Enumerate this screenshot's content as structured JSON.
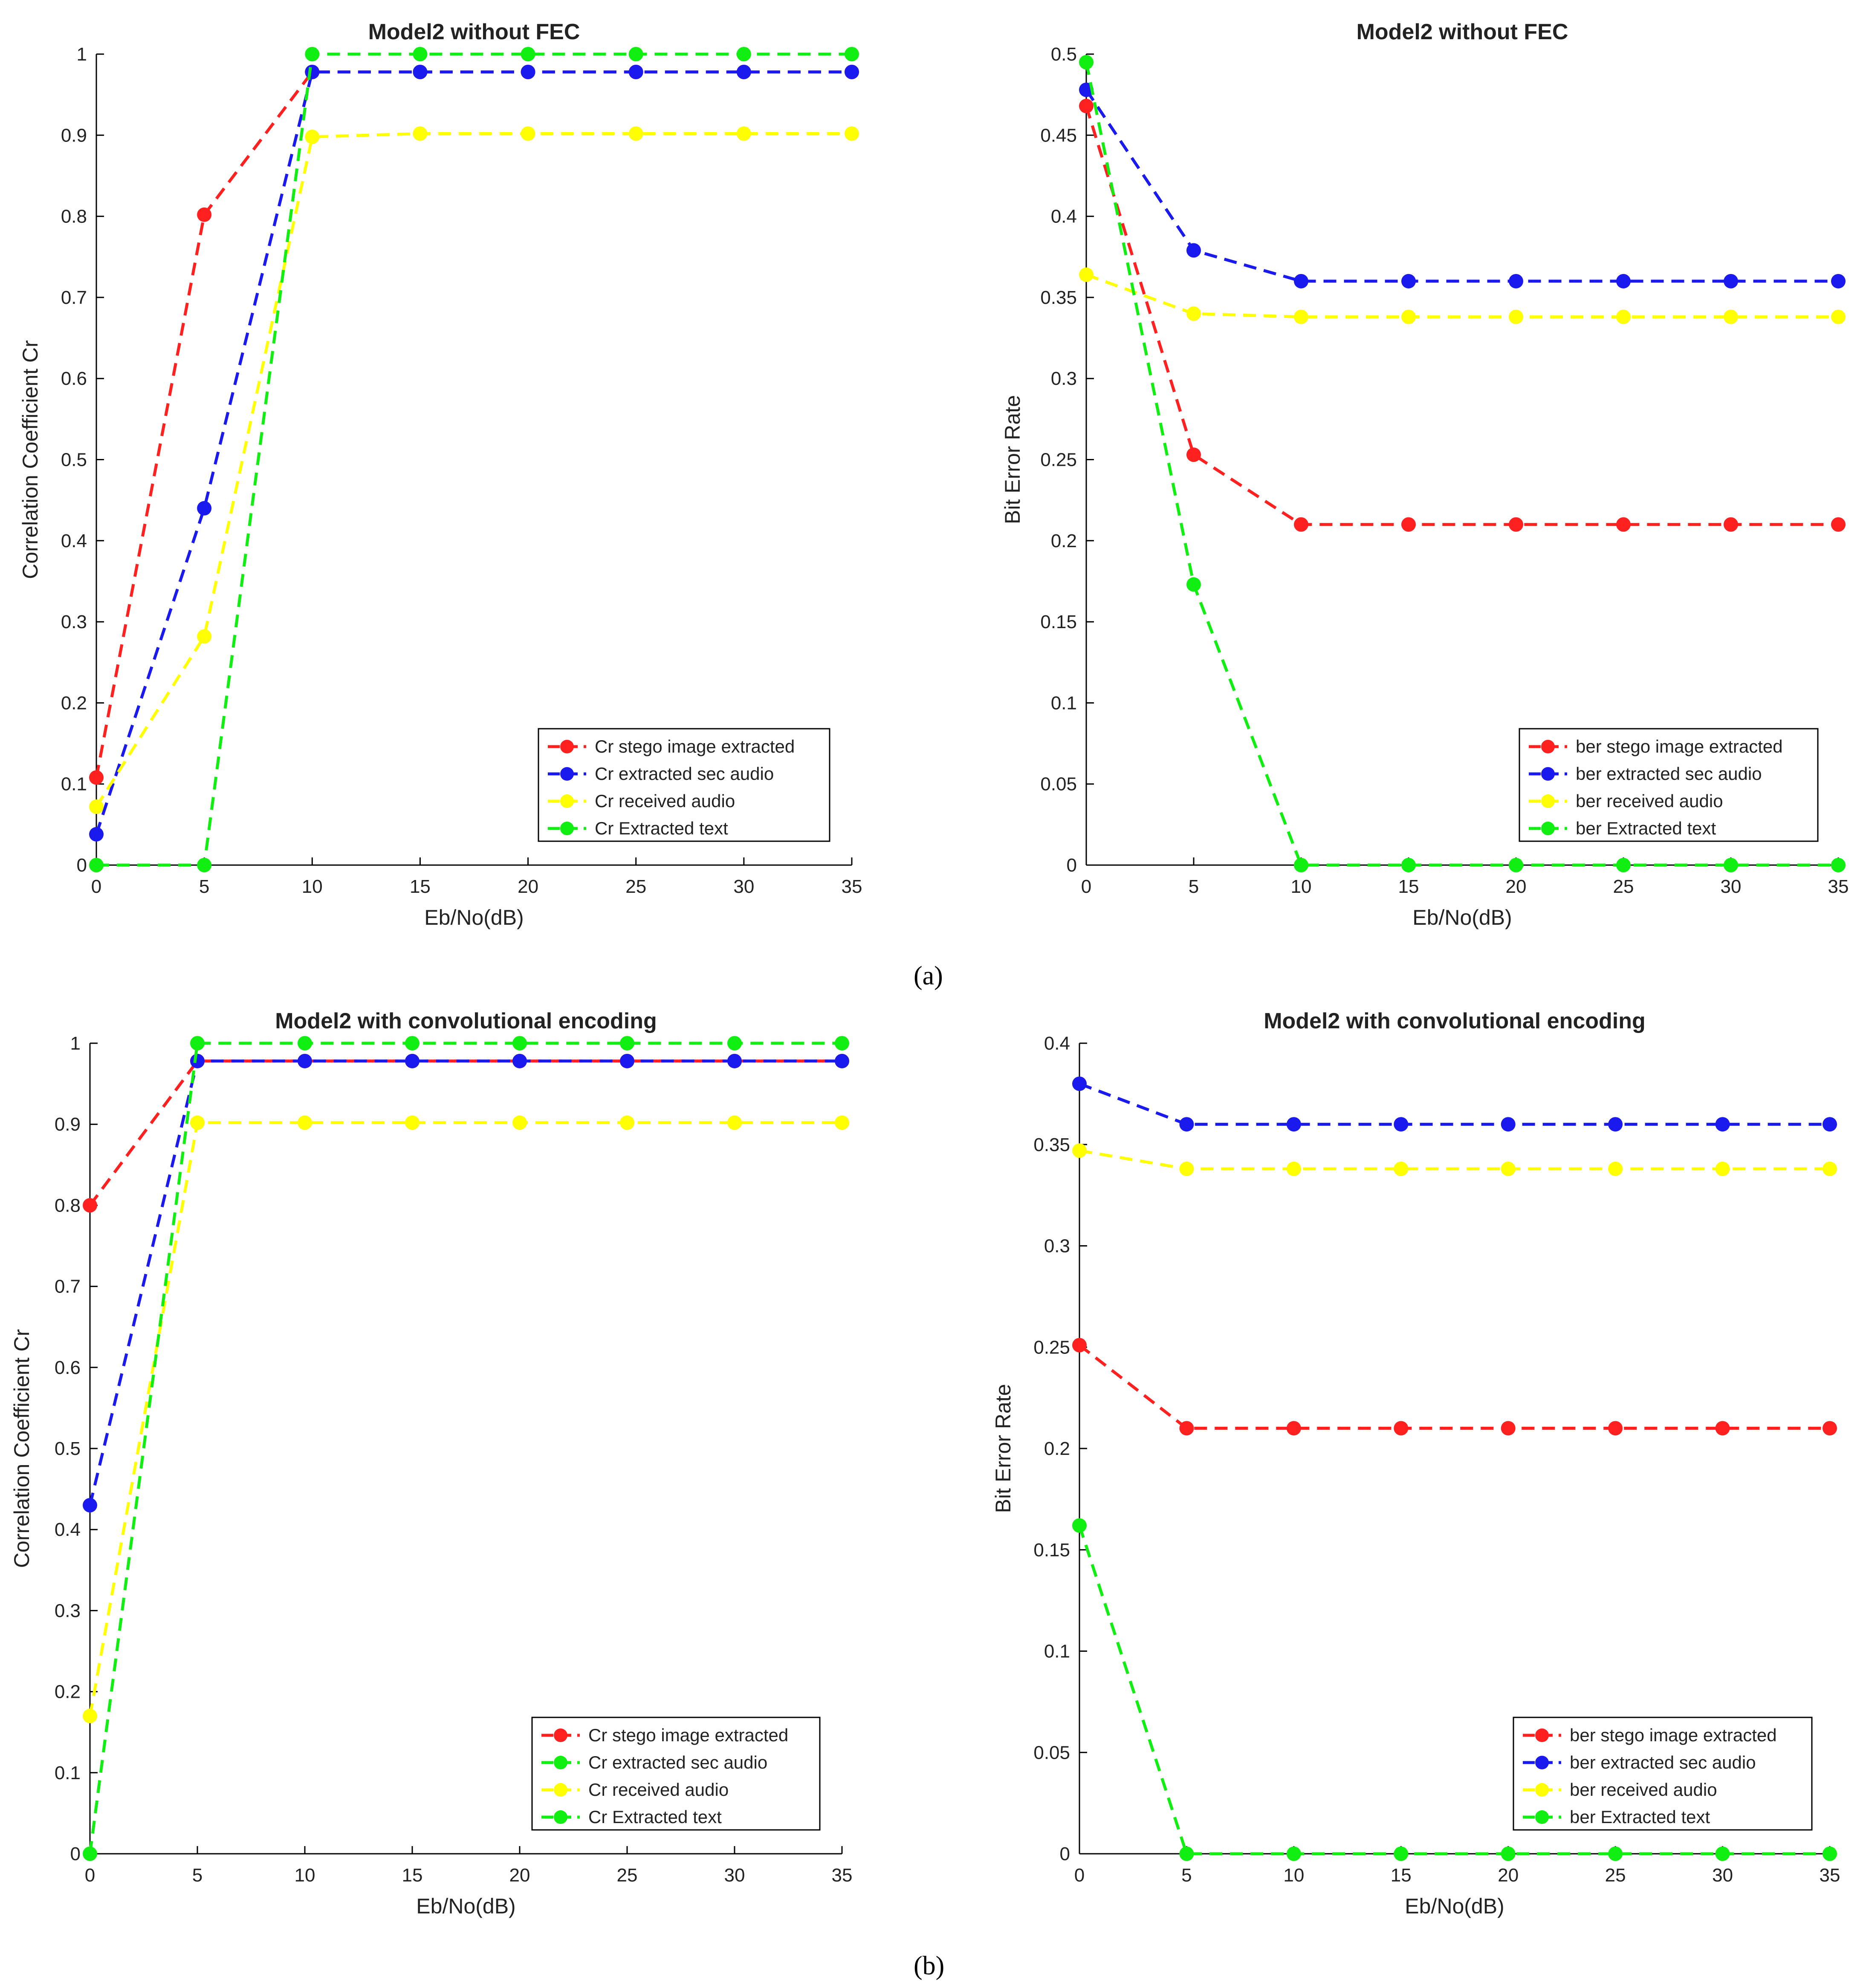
{
  "figure_labels": [
    "(a)",
    "(b)"
  ],
  "colors": {
    "red": "#ff2020",
    "blue": "#1a1aee",
    "yellow": "#ffff00",
    "green": "#11ee11",
    "axis": "#000000"
  },
  "chart_data": [
    {
      "type": "line",
      "title": "Model2 without FEC",
      "xlabel": "Eb/No(dB)",
      "ylabel": "Correlation Coefficient Cr",
      "xlim": [
        0,
        35
      ],
      "ylim": [
        0,
        1
      ],
      "xticks": [
        0,
        5,
        10,
        15,
        20,
        25,
        30,
        35
      ],
      "yticks": [
        0,
        0.1,
        0.2,
        0.3,
        0.4,
        0.5,
        0.6,
        0.7,
        0.8,
        0.9,
        1
      ],
      "x": [
        0,
        5,
        10,
        15,
        20,
        25,
        30,
        35
      ],
      "legend_position": "bottom-right",
      "series": [
        {
          "name": "Cr stego image extracted",
          "color": "red",
          "values": [
            0.108,
            0.802,
            0.978,
            0.978,
            0.978,
            0.978,
            0.978,
            0.978
          ]
        },
        {
          "name": "Cr extracted sec audio",
          "color": "blue",
          "values": [
            0.038,
            0.44,
            0.978,
            0.978,
            0.978,
            0.978,
            0.978,
            0.978
          ]
        },
        {
          "name": "Cr received audio",
          "color": "yellow",
          "values": [
            0.072,
            0.282,
            0.898,
            0.902,
            0.902,
            0.902,
            0.902,
            0.902
          ]
        },
        {
          "name": "Cr Extracted text",
          "color": "green",
          "values": [
            0,
            0,
            1,
            1,
            1,
            1,
            1,
            1
          ]
        }
      ]
    },
    {
      "type": "line",
      "title": "Model2 without FEC",
      "xlabel": "Eb/No(dB)",
      "ylabel": "Bit Error Rate",
      "xlim": [
        0,
        35
      ],
      "ylim": [
        0,
        0.5
      ],
      "xticks": [
        0,
        5,
        10,
        15,
        20,
        25,
        30,
        35
      ],
      "yticks": [
        0,
        0.05,
        0.1,
        0.15,
        0.2,
        0.25,
        0.3,
        0.35,
        0.4,
        0.45,
        0.5
      ],
      "x": [
        0,
        5,
        10,
        15,
        20,
        25,
        30,
        35
      ],
      "legend_position": "bottom-right",
      "series": [
        {
          "name": "ber stego image extracted",
          "color": "red",
          "values": [
            0.468,
            0.253,
            0.21,
            0.21,
            0.21,
            0.21,
            0.21,
            0.21
          ]
        },
        {
          "name": "ber extracted sec audio",
          "color": "blue",
          "values": [
            0.478,
            0.379,
            0.36,
            0.36,
            0.36,
            0.36,
            0.36,
            0.36
          ]
        },
        {
          "name": "ber received audio",
          "color": "yellow",
          "values": [
            0.364,
            0.34,
            0.338,
            0.338,
            0.338,
            0.338,
            0.338,
            0.338
          ]
        },
        {
          "name": "ber Extracted text",
          "color": "green",
          "values": [
            0.495,
            0.173,
            0,
            0,
            0,
            0,
            0,
            0
          ]
        }
      ]
    },
    {
      "type": "line",
      "title": "Model2 with convolutional encoding",
      "xlabel": "Eb/No(dB)",
      "ylabel": "Correlation Coefficient Cr",
      "xlim": [
        0,
        35
      ],
      "ylim": [
        0,
        1
      ],
      "xticks": [
        0,
        5,
        10,
        15,
        20,
        25,
        30,
        35
      ],
      "yticks": [
        0,
        0.1,
        0.2,
        0.3,
        0.4,
        0.5,
        0.6,
        0.7,
        0.8,
        0.9,
        1
      ],
      "x": [
        0,
        5,
        10,
        15,
        20,
        25,
        30,
        35
      ],
      "legend_position": "bottom-right",
      "series": [
        {
          "name": "Cr stego image extracted",
          "color": "red",
          "values": [
            0.8,
            0.978,
            0.978,
            0.978,
            0.978,
            0.978,
            0.978,
            0.978
          ],
          "legend_color": "red"
        },
        {
          "name": "Cr extracted sec audio",
          "color": "blue",
          "values": [
            0.43,
            0.978,
            0.978,
            0.978,
            0.978,
            0.978,
            0.978,
            0.978
          ],
          "legend_color": "green"
        },
        {
          "name": "Cr received audio",
          "color": "yellow",
          "values": [
            0.17,
            0.902,
            0.902,
            0.902,
            0.902,
            0.902,
            0.902,
            0.902
          ],
          "legend_color": "yellow"
        },
        {
          "name": "Cr Extracted text",
          "color": "green",
          "values": [
            0,
            1,
            1,
            1,
            1,
            1,
            1,
            1
          ],
          "legend_color": "green"
        }
      ]
    },
    {
      "type": "line",
      "title": "Model2 with convolutional encoding",
      "xlabel": "Eb/No(dB)",
      "ylabel": "Bit Error Rate",
      "xlim": [
        0,
        35
      ],
      "ylim": [
        0,
        0.4
      ],
      "xticks": [
        0,
        5,
        10,
        15,
        20,
        25,
        30,
        35
      ],
      "yticks": [
        0,
        0.05,
        0.1,
        0.15,
        0.2,
        0.25,
        0.3,
        0.35,
        0.4
      ],
      "x": [
        0,
        5,
        10,
        15,
        20,
        25,
        30,
        35
      ],
      "legend_position": "bottom-right",
      "series": [
        {
          "name": "ber stego image extracted",
          "color": "red",
          "values": [
            0.251,
            0.21,
            0.21,
            0.21,
            0.21,
            0.21,
            0.21,
            0.21
          ]
        },
        {
          "name": "ber extracted sec audio",
          "color": "blue",
          "values": [
            0.38,
            0.36,
            0.36,
            0.36,
            0.36,
            0.36,
            0.36,
            0.36
          ]
        },
        {
          "name": "ber received audio",
          "color": "yellow",
          "values": [
            0.347,
            0.338,
            0.338,
            0.338,
            0.338,
            0.338,
            0.338,
            0.338
          ]
        },
        {
          "name": "ber Extracted text",
          "color": "green",
          "values": [
            0.162,
            0,
            0,
            0,
            0,
            0,
            0,
            0
          ]
        }
      ]
    }
  ]
}
